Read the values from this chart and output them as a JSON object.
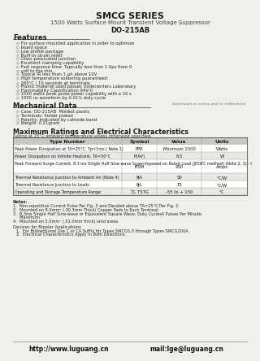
{
  "title": "SMCG SERIES",
  "subtitle": "1500 Watts Surface Mount Transient Voltage Suppressor",
  "package": "DO-215AB",
  "features_title": "Features",
  "features": [
    "For surface mounted application in order to optimize",
    "board space",
    "Low profile package",
    "Built-in strain relief",
    "Glass passivated junction",
    "Excellent clamping capability",
    "Fast response time: Typically less than 1.0ps from 0",
    "volt to the min.",
    "Typical IR less than 1 μA above 10V",
    "High temperature soldering guaranteed:",
    "260°C / 10 seconds at terminals",
    "Plastic material used passes Underwriters Laboratory",
    "Flammability Classification 94V-0",
    "1500 watts peak pulse power capability with a 10 x",
    "1000 us waveform by 0.01% duty cycle"
  ],
  "mechanical_title": "Mechanical Data",
  "mechanical_note": "Dimensions in inches and (in millimeters)",
  "mechanical_items": [
    "Case: DO-215AB  Molded plastic",
    "Terminals: Solder plated",
    "Polarity: Indicated by cathode band",
    "Weight: 0.21gram"
  ],
  "ratings_title": "Maximum Ratings and Electrical Characteristics",
  "ratings_subtitle": "Rating at 25°C ambient temperature unless otherwise specified.",
  "table_headers": [
    "Type Number",
    "Symbol",
    "Value",
    "Units"
  ],
  "table_rows": [
    [
      "Peak Power Dissipation at TA=25°C, Tp=1ms ( Note 1)",
      "PPK",
      "Minimum 1500",
      "Watts"
    ],
    [
      "Power Dissipation on Infinite Heatsink, TA=50°C",
      "P(AV)",
      "6.5",
      "W"
    ],
    [
      "Peak Forward Surge Current, 8.3 ms Single Half Sine-wave Superimposed on Rated Load (JEDEC method) (Note 2, 3) - Unidirectional Only",
      "IFSM",
      "200",
      "Amps"
    ],
    [
      "Thermal Resistance Junction to Ambient Air (Note 4)",
      "θJA",
      "50",
      "°C/W"
    ],
    [
      "Thermal Resistance Junction to Leads",
      "θJL",
      "15",
      "°C/W"
    ],
    [
      "Operating and Storage Temperature Range",
      "TJ, TSTG",
      "-55 to + 150",
      "°C"
    ]
  ],
  "notes": [
    "Notes:",
    "1.  Non-repetitive Current Pulse Per Fig. 3 and Derated above TA=25°C Per Fig. 2.",
    "2.  Mounted on 8.0mm² (.30.3mm Thick) Copper Pads to Each Terminal.",
    "3.  8.3ms Single Half Sine-wave or Equivalent Square Wave, Duty Cycles4 Pulses Per Minute",
    "     Maximum.",
    "4.  Mounted on 5.0mm² (.01.0mm thick) land areas."
  ],
  "bipolar_title": "Devices for Bipolar Applications",
  "bipolar_notes": [
    "1.  For Bidirectional Use C or CA Suffix for Types SMCG5.0 through Types SMCG200A.",
    "2.  Electrical Characteristics Apply in Both Directions."
  ],
  "footer_web": "http://www.luguang.cn",
  "footer_email": "mail:lge@luguang.cn",
  "bg_color": "#f0f0eb",
  "table_header_bg": "#c8c8c0",
  "table_alt_bg": "#e8e8e4"
}
